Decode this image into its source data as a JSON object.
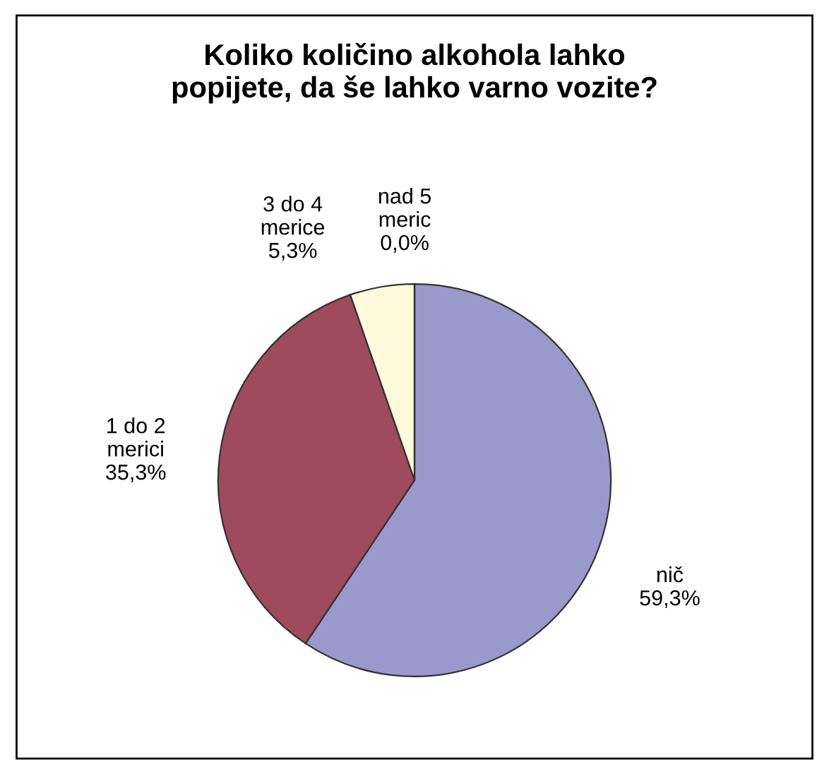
{
  "chart_data": {
    "type": "pie",
    "title": "Koliko količino alkohola lahko\npopijete, da še lahko varno vozite?",
    "categories": [
      "nič",
      "1 do 2\nmerici",
      "3 do 4\nmerice",
      "nad 5\nmeric"
    ],
    "values": [
      59.3,
      35.3,
      5.3,
      0.0
    ],
    "value_labels": [
      "59,3%",
      "35,3%",
      "5,3%",
      "0,0%"
    ],
    "colors": [
      "#9999cc",
      "#a04a5e",
      "#fffadc",
      "#bfe6e6"
    ],
    "legend": false
  }
}
